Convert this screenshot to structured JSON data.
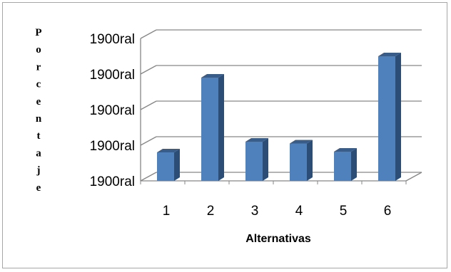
{
  "chart_data": {
    "type": "bar",
    "title": "",
    "xlabel": "Alternativas",
    "ylabel": "Porcentaje",
    "categories": [
      "1",
      "2",
      "3",
      "4",
      "5",
      "6"
    ],
    "series": [
      {
        "values": [
          0.8,
          2.9,
          1.1,
          1.05,
          0.82,
          3.5
        ]
      }
    ],
    "y_tick_labels": [
      "1900ral",
      "1900ral",
      "1900ral",
      "1900ral",
      "1900ral"
    ],
    "ylim": [
      0,
      4
    ],
    "grid": true,
    "legend": "none",
    "three_d": true,
    "colors": {
      "bar_front": "#4f81bd",
      "bar_side": "#2c4d75",
      "bar_top": "#385d8a",
      "grid": "#868686",
      "floor": "#c0c0c0"
    }
  }
}
